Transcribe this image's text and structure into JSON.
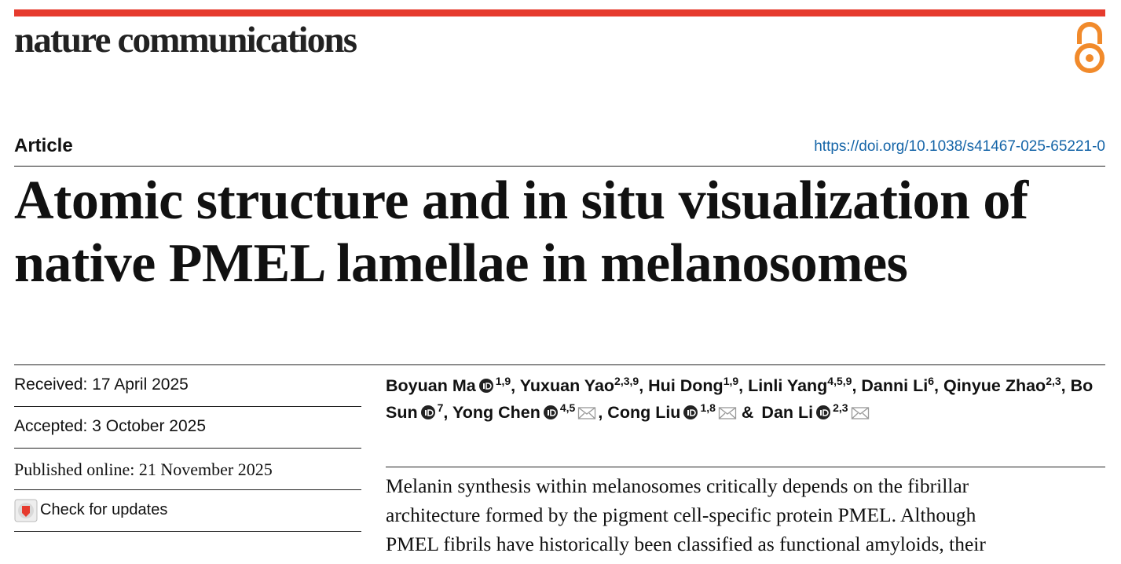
{
  "header": {
    "journal": "nature communications",
    "article_type": "Article",
    "doi": "https://doi.org/10.1038/s41467-025-65221-0"
  },
  "title": {
    "lines": [
      "Atomic structure and in situ visualization of",
      "native PMEL lamellae in melanosomes"
    ]
  },
  "dates": {
    "received": "Received: 17 April 2025",
    "accepted": "Accepted: 3 October 2025",
    "published": "Published online: 21 November 2025",
    "updates": "Check for updates"
  },
  "authors": [
    {
      "name": "Boyuan Ma",
      "affiliations": "1,9",
      "orcid": true,
      "corresponding": false,
      "suffix": ","
    },
    {
      "name": "Yuxuan Yao",
      "affiliations": "2,3,9",
      "orcid": false,
      "corresponding": false,
      "suffix": ","
    },
    {
      "name": "Hui Dong",
      "affiliations": "1,9",
      "orcid": false,
      "corresponding": false,
      "suffix": ","
    },
    {
      "name": "Linli Yang",
      "affiliations": "4,5,9",
      "orcid": false,
      "corresponding": false,
      "suffix": ","
    },
    {
      "name": "Danni Li",
      "affiliations": "6",
      "orcid": false,
      "corresponding": false,
      "suffix": ","
    },
    {
      "name": "Qinyue Zhao",
      "affiliations": "2,3",
      "orcid": false,
      "corresponding": false,
      "suffix": ","
    },
    {
      "name": "Bo Sun",
      "affiliations": "7",
      "orcid": true,
      "corresponding": false,
      "suffix": ","
    },
    {
      "name": "Yong Chen",
      "affiliations": "4,5",
      "orcid": true,
      "corresponding": true,
      "suffix": ","
    },
    {
      "name": "Cong Liu",
      "affiliations": "1,8",
      "orcid": true,
      "corresponding": true,
      "suffix": "&"
    },
    {
      "name": "Dan Li",
      "affiliations": "2,3",
      "orcid": true,
      "corresponding": true
    }
  ],
  "abstract": {
    "lines": [
      "Melanin synthesis within melanosomes critically depends on the fibrillar",
      "architecture formed by the pigment cell-specific protein PMEL. Although",
      "PMEL fibrils have historically been classified as functional amyloids, their"
    ]
  }
}
